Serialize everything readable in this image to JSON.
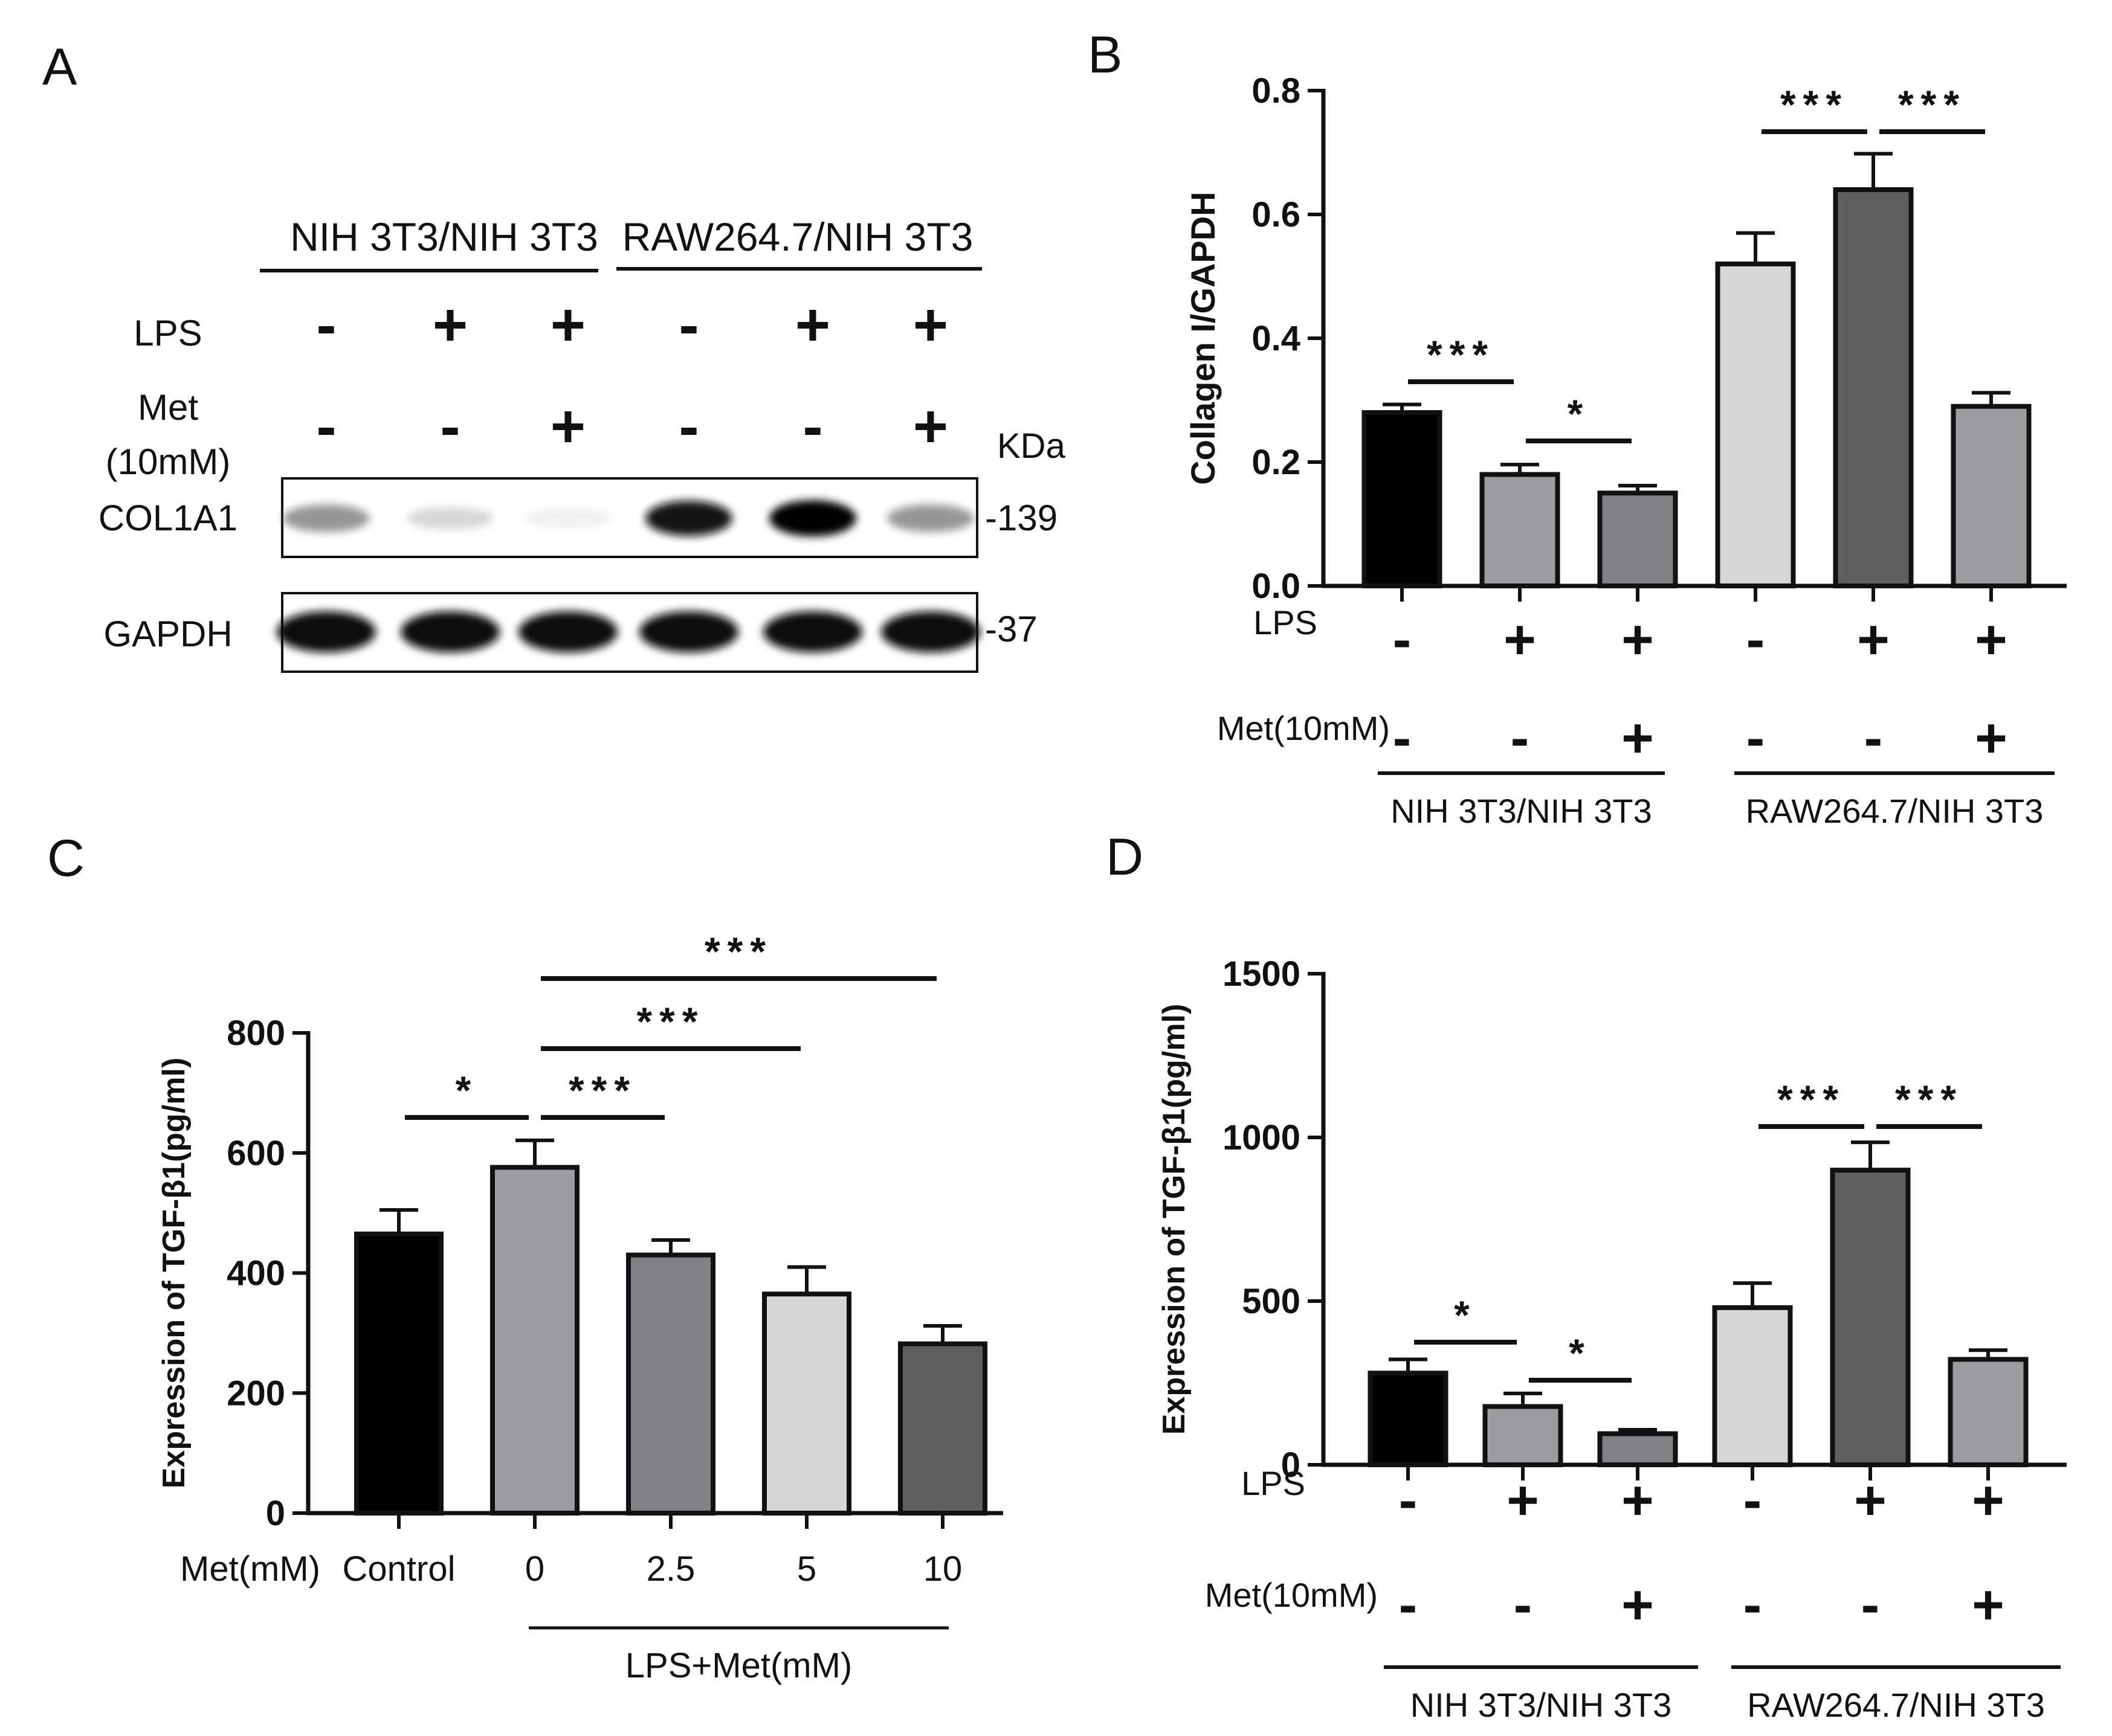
{
  "panels": {
    "A": {
      "letter": "A",
      "groups": [
        "NIH 3T3/NIH 3T3",
        "RAW264.7/NIH 3T3"
      ],
      "row_labels": {
        "lps": "LPS",
        "met_line1": "Met",
        "met_line2": "(10mM)",
        "col": "COL1A1",
        "gapdh": "GAPDH"
      },
      "lps": [
        "-",
        "+",
        "+",
        "-",
        "+",
        "+"
      ],
      "met": [
        "-",
        "-",
        "+",
        "-",
        "-",
        "+"
      ],
      "kda": "KDa",
      "col_mw": "-139",
      "gapdh_mw": "-37",
      "col_band_intensity": [
        0.55,
        0.25,
        0.08,
        0.95,
        1.0,
        0.55
      ],
      "gapdh_band_intensity": [
        1.0,
        1.0,
        1.0,
        0.95,
        1.0,
        1.0
      ]
    },
    "B": {
      "letter": "B"
    },
    "C": {
      "letter": "C"
    },
    "D": {
      "letter": "D"
    }
  },
  "chart_data": [
    {
      "panel": "B",
      "type": "bar",
      "ylabel": "Collagen I/GAPDH",
      "ylim": [
        0,
        0.8
      ],
      "yticks": [
        "0.0",
        "0.2",
        "0.4",
        "0.6",
        "0.8"
      ],
      "ytick_values": [
        0,
        0.2,
        0.4,
        0.6,
        0.8
      ],
      "values": [
        0.28,
        0.18,
        0.15,
        0.52,
        0.64,
        0.29
      ],
      "errors": [
        0.013,
        0.016,
        0.012,
        0.05,
        0.058,
        0.022
      ],
      "colors": [
        "#000000",
        "#9d9ca1",
        "#818085",
        "#d6d6d6",
        "#5f5f5f",
        "#9d9ca1"
      ],
      "row1_label": "LPS",
      "row1": [
        "-",
        "+",
        "+",
        "-",
        "+",
        "+"
      ],
      "row2_label": "Met(10mM)",
      "row2": [
        "-",
        "-",
        "+",
        "-",
        "-",
        "+"
      ],
      "groups": [
        "NIH 3T3/NIH 3T3",
        "RAW264.7/NIH 3T3"
      ],
      "significance": [
        {
          "from": 0,
          "to": 1,
          "label": "***"
        },
        {
          "from": 1,
          "to": 2,
          "label": "*"
        },
        {
          "from": 3,
          "to": 4,
          "label": "***"
        },
        {
          "from": 4,
          "to": 5,
          "label": "***"
        }
      ]
    },
    {
      "panel": "C",
      "type": "bar",
      "ylabel": "Expression of TGF-β1(pg/ml)",
      "ylim": [
        0,
        800
      ],
      "yticks": [
        "0",
        "200",
        "400",
        "600",
        "800"
      ],
      "ytick_values": [
        0,
        200,
        400,
        600,
        800
      ],
      "categories": [
        "Control",
        "0",
        "2.5",
        "5",
        "10"
      ],
      "xlabel_left": "Met(mM)",
      "group_label": "LPS+Met(mM)",
      "values": [
        465,
        576,
        430,
        365,
        282
      ],
      "errors": [
        40,
        45,
        25,
        45,
        30
      ],
      "colors": [
        "#000000",
        "#9d9ca1",
        "#818085",
        "#d6d6d6",
        "#5f5f5f"
      ],
      "significance": [
        {
          "from": 0,
          "to": 1,
          "label": "*"
        },
        {
          "from": 1,
          "to": 2,
          "label": "***"
        },
        {
          "from": 1,
          "to": 3,
          "label": "***"
        },
        {
          "from": 1,
          "to": 4,
          "label": "***"
        }
      ]
    },
    {
      "panel": "D",
      "type": "bar",
      "ylabel": "Expression of TGF-β1(pg/ml)",
      "ylim": [
        0,
        1500
      ],
      "yticks": [
        "0",
        "500",
        "1000",
        "1500"
      ],
      "ytick_values": [
        0,
        500,
        1000,
        1500
      ],
      "values": [
        280,
        178,
        95,
        480,
        900,
        322
      ],
      "errors": [
        42,
        40,
        12,
        75,
        85,
        28
      ],
      "colors": [
        "#000000",
        "#9d9ca1",
        "#818085",
        "#d6d6d6",
        "#5f5f5f",
        "#9d9ca1"
      ],
      "row1_label": "LPS",
      "row1": [
        "-",
        "+",
        "+",
        "-",
        "+",
        "+"
      ],
      "row2_label": "Met(10mM)",
      "row2": [
        "-",
        "-",
        "+",
        "-",
        "-",
        "+"
      ],
      "groups": [
        "NIH 3T3/NIH 3T3",
        "RAW264.7/NIH 3T3"
      ],
      "significance": [
        {
          "from": 0,
          "to": 1,
          "label": "*"
        },
        {
          "from": 1,
          "to": 2,
          "label": "*"
        },
        {
          "from": 3,
          "to": 4,
          "label": "***"
        },
        {
          "from": 4,
          "to": 5,
          "label": "***"
        }
      ]
    }
  ]
}
